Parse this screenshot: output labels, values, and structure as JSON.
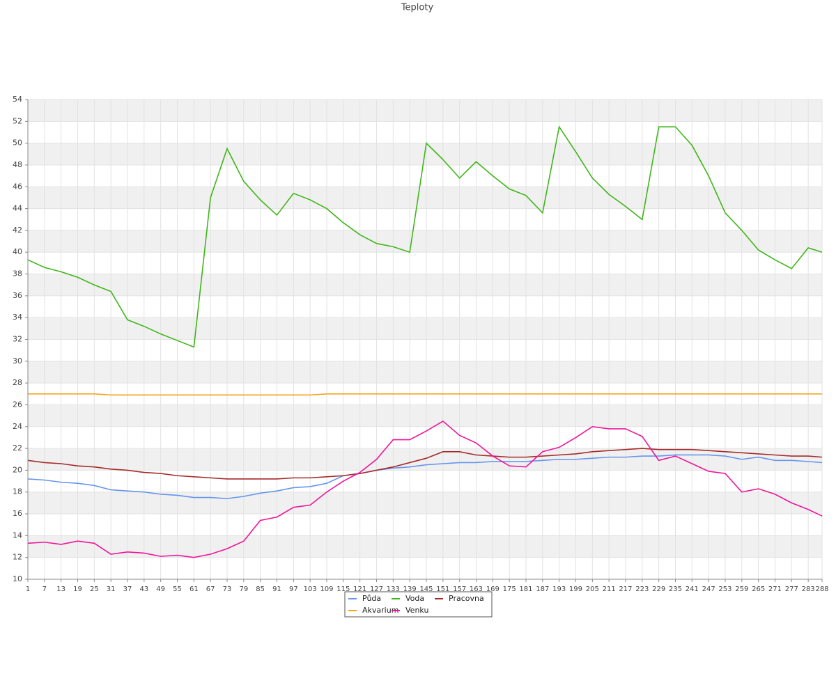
{
  "chart_data": {
    "type": "line",
    "title": "Teploty",
    "x": [
      1,
      7,
      13,
      19,
      25,
      31,
      37,
      43,
      49,
      55,
      61,
      67,
      73,
      79,
      85,
      91,
      97,
      103,
      109,
      115,
      121,
      127,
      133,
      139,
      145,
      151,
      157,
      163,
      169,
      175,
      181,
      187,
      193,
      199,
      205,
      211,
      217,
      223,
      229,
      235,
      241,
      247,
      253,
      259,
      265,
      271,
      277,
      283,
      288
    ],
    "xlim": [
      1,
      288
    ],
    "ylim": [
      10,
      54
    ],
    "yticks": [
      10,
      12,
      14,
      16,
      18,
      20,
      22,
      24,
      26,
      28,
      30,
      32,
      34,
      36,
      38,
      40,
      42,
      44,
      46,
      48,
      50,
      52,
      54
    ],
    "grid": true,
    "series": [
      {
        "name": "Půda",
        "color": "#6495ed",
        "values": [
          19.2,
          19.1,
          18.9,
          18.8,
          18.6,
          18.2,
          18.1,
          18.0,
          17.8,
          17.7,
          17.5,
          17.5,
          17.4,
          17.6,
          17.9,
          18.1,
          18.4,
          18.5,
          18.8,
          19.5,
          19.7,
          20.0,
          20.2,
          20.3,
          20.5,
          20.6,
          20.7,
          20.7,
          20.8,
          20.8,
          20.8,
          20.9,
          21.0,
          21.0,
          21.1,
          21.2,
          21.2,
          21.3,
          21.3,
          21.4,
          21.4,
          21.4,
          21.3,
          21.0,
          21.2,
          20.9,
          20.9,
          20.8,
          20.7
        ]
      },
      {
        "name": "Voda",
        "color": "#3fb618",
        "values": [
          39.3,
          38.6,
          38.2,
          37.7,
          37.0,
          36.4,
          33.8,
          33.2,
          32.5,
          31.9,
          31.3,
          45.0,
          49.5,
          46.5,
          44.8,
          43.4,
          45.4,
          44.8,
          44.0,
          42.7,
          41.6,
          40.8,
          40.5,
          40.0,
          50.0,
          48.5,
          46.8,
          48.3,
          47.0,
          45.8,
          45.2,
          43.6,
          51.5,
          49.2,
          46.8,
          45.3,
          44.2,
          43.0,
          51.5,
          51.5,
          49.8,
          47.0,
          43.6,
          42.0,
          40.2,
          39.3,
          38.5,
          40.4,
          40.0
        ]
      },
      {
        "name": "Pracovna",
        "color": "#a52a2a",
        "values": [
          20.9,
          20.7,
          20.6,
          20.4,
          20.3,
          20.1,
          20.0,
          19.8,
          19.7,
          19.5,
          19.4,
          19.3,
          19.2,
          19.2,
          19.2,
          19.2,
          19.3,
          19.3,
          19.4,
          19.5,
          19.7,
          20.0,
          20.3,
          20.7,
          21.1,
          21.7,
          21.7,
          21.4,
          21.3,
          21.2,
          21.2,
          21.3,
          21.4,
          21.5,
          21.7,
          21.8,
          21.9,
          22.0,
          21.9,
          21.9,
          21.9,
          21.8,
          21.7,
          21.6,
          21.5,
          21.4,
          21.3,
          21.3,
          21.2
        ]
      },
      {
        "name": "Akvarium",
        "color": "#f5a31a",
        "values": [
          27.0,
          27.0,
          27.0,
          27.0,
          27.0,
          26.9,
          26.9,
          26.9,
          26.9,
          26.9,
          26.9,
          26.9,
          26.9,
          26.9,
          26.9,
          26.9,
          26.9,
          26.9,
          27.0,
          27.0,
          27.0,
          27.0,
          27.0,
          27.0,
          27.0,
          27.0,
          27.0,
          27.0,
          27.0,
          27.0,
          27.0,
          27.0,
          27.0,
          27.0,
          27.0,
          27.0,
          27.0,
          27.0,
          27.0,
          27.0,
          27.0,
          27.0,
          27.0,
          27.0,
          27.0,
          27.0,
          27.0,
          27.0,
          27.0
        ]
      },
      {
        "name": "Venku",
        "color": "#f0149a",
        "values": [
          13.3,
          13.4,
          13.2,
          13.5,
          13.3,
          12.3,
          12.5,
          12.4,
          12.1,
          12.2,
          12.0,
          12.3,
          12.8,
          13.5,
          15.4,
          15.7,
          16.6,
          16.8,
          18.0,
          19.0,
          19.8,
          21.0,
          22.8,
          22.8,
          23.6,
          24.5,
          23.2,
          22.5,
          21.3,
          20.4,
          20.3,
          21.7,
          22.1,
          23.0,
          24.0,
          23.8,
          23.8,
          23.1,
          20.9,
          21.3,
          20.6,
          19.9,
          19.7,
          18.0,
          18.3,
          17.8,
          17.0,
          16.4,
          15.8
        ]
      }
    ]
  }
}
